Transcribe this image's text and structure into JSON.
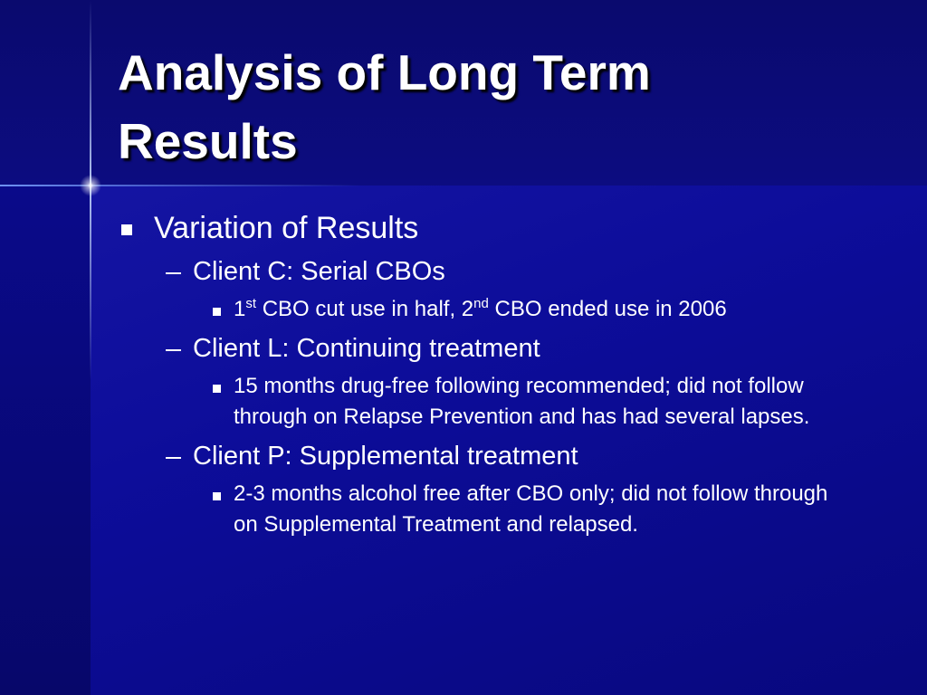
{
  "title": "Analysis of Long Term Results",
  "items": [
    {
      "text": "Variation of Results",
      "children": [
        {
          "text": "Client C: Serial CBOs",
          "children": [
            {
              "parts": [
                "1",
                "st",
                " CBO cut use in half, 2",
                "nd",
                " CBO ended use in 2006"
              ]
            }
          ]
        },
        {
          "text": "Client L: Continuing treatment",
          "children": [
            {
              "parts": [
                "15 months drug-free following recommended; did not follow through on Relapse Prevention and has had several lapses."
              ]
            }
          ]
        },
        {
          "text": "Client P: Supplemental treatment",
          "children": [
            {
              "parts": [
                "2-3 months alcohol free after CBO only; did not follow through on Supplemental Treatment and relapsed."
              ]
            }
          ]
        }
      ]
    }
  ]
}
